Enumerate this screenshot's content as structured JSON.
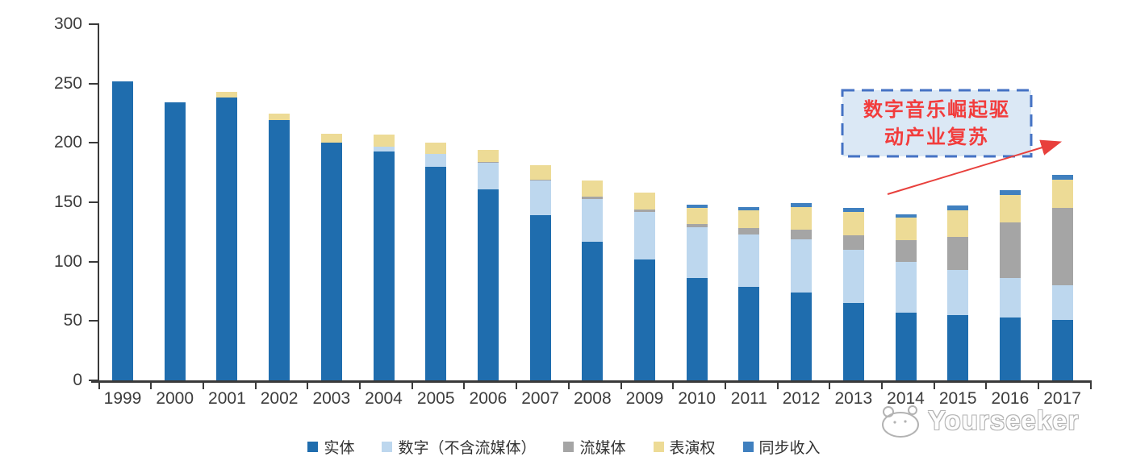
{
  "chart_data": {
    "type": "bar",
    "stacked": true,
    "title": "",
    "xlabel": "",
    "ylabel": "",
    "ylim": [
      0,
      300
    ],
    "yticks": [
      0,
      50,
      100,
      150,
      200,
      250,
      300
    ],
    "grid": false,
    "legend_position": "bottom",
    "categories": [
      "1999",
      "2000",
      "2001",
      "2002",
      "2003",
      "2004",
      "2005",
      "2006",
      "2007",
      "2008",
      "2009",
      "2010",
      "2011",
      "2012",
      "2013",
      "2014",
      "2015",
      "2016",
      "2017"
    ],
    "series": [
      {
        "name": "实体",
        "color": "#1F6DAE",
        "values": [
          252,
          234,
          238,
          219,
          200,
          193,
          180,
          161,
          139,
          117,
          102,
          86,
          79,
          74,
          65,
          57,
          55,
          53,
          51
        ]
      },
      {
        "name": "数字（不含流媒体）",
        "color": "#BDD7EE",
        "values": [
          0,
          0,
          0,
          0,
          0,
          4,
          11,
          22,
          29,
          36,
          40,
          43,
          44,
          45,
          45,
          43,
          38,
          33,
          29
        ]
      },
      {
        "name": "流媒体",
        "color": "#A5A5A5",
        "values": [
          0,
          0,
          0,
          0,
          0,
          0,
          0,
          1,
          1,
          2,
          2,
          3,
          5,
          8,
          12,
          18,
          28,
          47,
          65
        ]
      },
      {
        "name": "表演权",
        "color": "#EDDB96",
        "values": [
          0,
          0,
          5,
          6,
          8,
          10,
          9,
          10,
          12,
          13,
          14,
          13,
          15,
          19,
          20,
          19,
          22,
          23,
          24
        ]
      },
      {
        "name": "同步收入",
        "color": "#4080BF",
        "values": [
          0,
          0,
          0,
          0,
          0,
          0,
          0,
          0,
          0,
          0,
          0,
          3,
          3,
          3,
          3,
          3,
          4,
          4,
          4
        ]
      }
    ]
  },
  "annotation": {
    "line1": "数字音乐崛起驱",
    "line2": "动产业复苏",
    "text_color": "#F23C3C",
    "box_fill": "#DBE8F5",
    "border_color": "#4472C4",
    "arrow_color": "#E8403C"
  },
  "watermark": {
    "text": "Yourseeker"
  }
}
